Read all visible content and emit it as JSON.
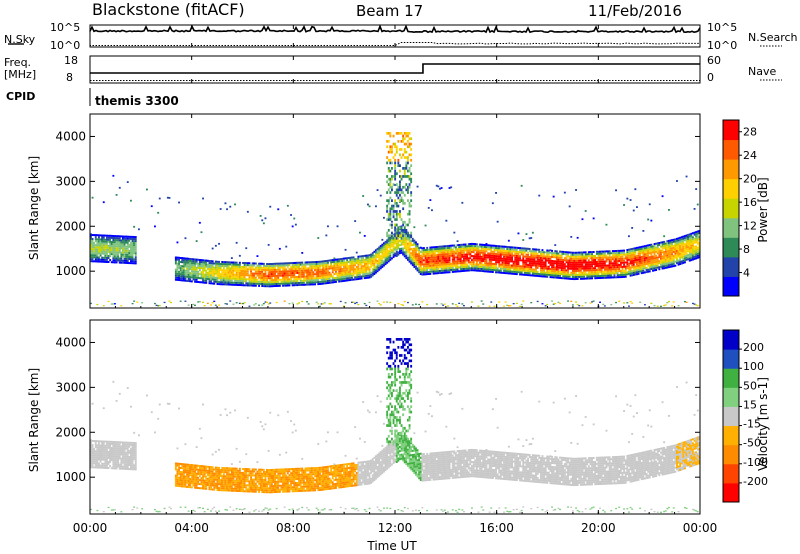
{
  "header": {
    "station": "Blackstone (fitACF)",
    "beam": "Beam 17",
    "date": "11/Feb/2016"
  },
  "sky_panel": {
    "left_label": "N.Sky",
    "right_label": "N.Search",
    "left_tick_top": "10^5",
    "left_tick_bottom": "10^0",
    "right_tick_top": "10^5",
    "right_tick_bottom": "10^0"
  },
  "freq_panel": {
    "left_label_line1": "Freq.",
    "left_label_line2": "[MHz]",
    "right_label": "Nave",
    "left_tick_top": "18",
    "left_tick_bottom": "8",
    "right_tick_top": "60",
    "right_tick_bottom": "0"
  },
  "cpid": {
    "label": "CPID",
    "value": "themis 3300"
  },
  "colors": {
    "power_scale": [
      "#0000ff",
      "#2244aa",
      "#2e8b57",
      "#7fc37f",
      "#c8d400",
      "#ffd000",
      "#ff9900",
      "#ff5a00",
      "#ff0000"
    ],
    "velocity_scale": [
      "#ff0000",
      "#ff4400",
      "#ff8c00",
      "#ffb000",
      "#c8c8c8",
      "#80d080",
      "#40b040",
      "#2050c0",
      "#0000c8"
    ]
  },
  "chart_data": [
    {
      "type": "heatmap",
      "name": "power",
      "ylabel": "Slant Range [km]",
      "xlabel": "Time UT",
      "xlim": [
        0,
        24
      ],
      "ylim": [
        180,
        4500
      ],
      "x_ticks": [
        "00:00",
        "04:00",
        "08:00",
        "12:00",
        "16:00",
        "20:00",
        "00:00"
      ],
      "y_ticks": [
        1000,
        2000,
        3000,
        4000
      ],
      "colorbar": {
        "label": "Power [dB]",
        "ticks": [
          "4",
          "8",
          "12",
          "16",
          "20",
          "24",
          "28"
        ],
        "range": [
          0,
          30
        ]
      },
      "main_band_km": {
        "hours": [
          0,
          1.8,
          3.3,
          5,
          7,
          9,
          11,
          12.2,
          13,
          15,
          17,
          19,
          21,
          23,
          24
        ],
        "center": [
          1500,
          1450,
          1050,
          950,
          900,
          950,
          1100,
          1700,
          1200,
          1300,
          1200,
          1100,
          1150,
          1400,
          1600
        ],
        "peak_db": [
          14,
          12,
          10,
          18,
          26,
          24,
          20,
          16,
          26,
          28,
          30,
          30,
          28,
          22,
          18
        ]
      }
    },
    {
      "type": "heatmap",
      "name": "velocity",
      "ylabel": "Slant Range [km]",
      "xlabel": "Time UT",
      "xlim": [
        0,
        24
      ],
      "ylim": [
        180,
        4500
      ],
      "x_ticks": [
        "00:00",
        "04:00",
        "08:00",
        "12:00",
        "16:00",
        "20:00",
        "00:00"
      ],
      "y_ticks": [
        1000,
        2000,
        3000,
        4000
      ],
      "colorbar": {
        "label": "Velocity [m s-1]",
        "ticks": [
          "200",
          "100",
          "50",
          "15",
          "-15",
          "-50",
          "-100",
          "-200"
        ],
        "range": [
          -250,
          250
        ]
      }
    }
  ],
  "time_axis_label": "Time UT"
}
